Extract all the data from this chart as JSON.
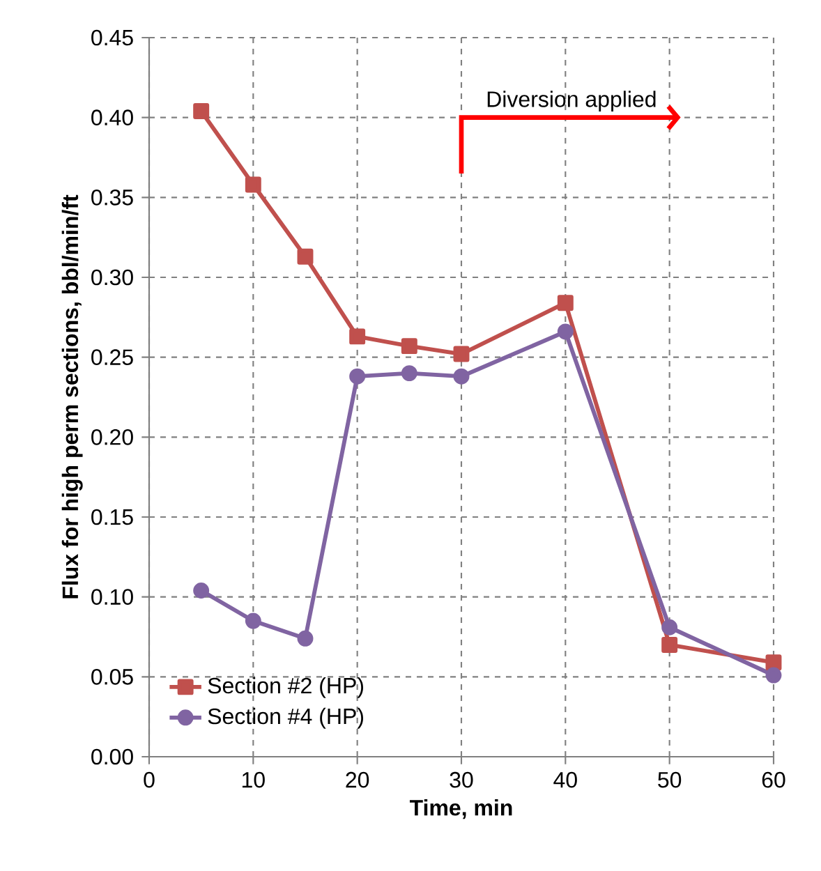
{
  "chart_data": {
    "type": "line",
    "xlabel": "Time, min",
    "ylabel": "Flux for high perm sections, bbl/min/ft",
    "xlim": [
      0,
      60
    ],
    "xticks": [
      0,
      10,
      20,
      30,
      40,
      50,
      60
    ],
    "ylim": [
      0,
      0.45
    ],
    "yticks": [
      {
        "value": 0,
        "label": "0.00"
      },
      {
        "value": 0.05,
        "label": "0.05"
      },
      {
        "value": 0.1,
        "label": "0.10"
      },
      {
        "value": 0.15,
        "label": "0.15"
      },
      {
        "value": 0.2,
        "label": "0.20"
      },
      {
        "value": 0.25,
        "label": "0.25"
      },
      {
        "value": 0.3,
        "label": "0.30"
      },
      {
        "value": 0.35,
        "label": "0.35"
      },
      {
        "value": 0.4,
        "label": "0.40"
      },
      {
        "value": 0.45,
        "label": "0.45"
      }
    ],
    "grid": true,
    "legend": "bottom left",
    "line_style": "solid",
    "x": [
      5,
      10,
      15,
      20,
      25,
      30,
      40,
      50,
      60
    ],
    "series": [
      {
        "name": "Section #2 (HP)",
        "color": "#c0504d",
        "marker": "square",
        "values": [
          0.404,
          0.358,
          0.313,
          0.263,
          0.257,
          0.252,
          0.284,
          0.07,
          0.059
        ]
      },
      {
        "name": "Section #4 (HP)",
        "color": "#8064a2",
        "marker": "circle",
        "values": [
          0.104,
          0.085,
          0.074,
          0.238,
          0.24,
          0.238,
          0.266,
          0.081,
          0.051
        ]
      }
    ],
    "ref_lines": [
      {
        "axis": "x",
        "value": 30,
        "label": "Diversion applied",
        "color": "#ff0000"
      }
    ]
  }
}
